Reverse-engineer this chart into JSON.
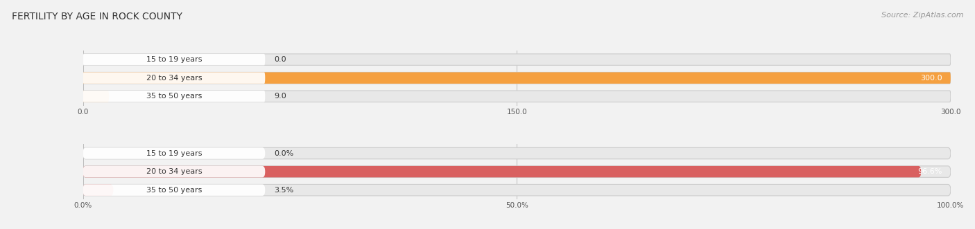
{
  "title": "Female Fertility by Age in Rock County",
  "title_display": "FERTILITY BY AGE IN ROCK COUNTY",
  "source": "Source: ZipAtlas.com",
  "top_chart": {
    "categories": [
      "15 to 19 years",
      "20 to 34 years",
      "35 to 50 years"
    ],
    "values": [
      0.0,
      300.0,
      9.0
    ],
    "xlim": [
      0,
      300
    ],
    "xticks": [
      0.0,
      150.0,
      300.0
    ],
    "xtick_labels": [
      "0.0",
      "150.0",
      "300.0"
    ],
    "bar_color_main": "#F5A040",
    "bar_color_light": "#F5C898",
    "bar_bg_color": "#E8E8E8",
    "bar_border_color": "#DDDDDD"
  },
  "bottom_chart": {
    "categories": [
      "15 to 19 years",
      "20 to 34 years",
      "35 to 50 years"
    ],
    "values": [
      0.0,
      96.6,
      3.5
    ],
    "value_labels": [
      "0.0%",
      "96.6%",
      "3.5%"
    ],
    "xlim": [
      0,
      100
    ],
    "xticks": [
      0.0,
      50.0,
      100.0
    ],
    "xtick_labels": [
      "0.0%",
      "50.0%",
      "100.0%"
    ],
    "bar_color_main": "#D96060",
    "bar_color_light": "#E8A0A0",
    "bar_bg_color": "#E8E8E8",
    "bar_border_color": "#DDDDDD"
  },
  "figsize": [
    14.06,
    3.31
  ],
  "dpi": 100,
  "bg_color": "#F2F2F2",
  "title_fontsize": 10,
  "source_fontsize": 8,
  "label_fontsize": 8,
  "value_fontsize": 8
}
